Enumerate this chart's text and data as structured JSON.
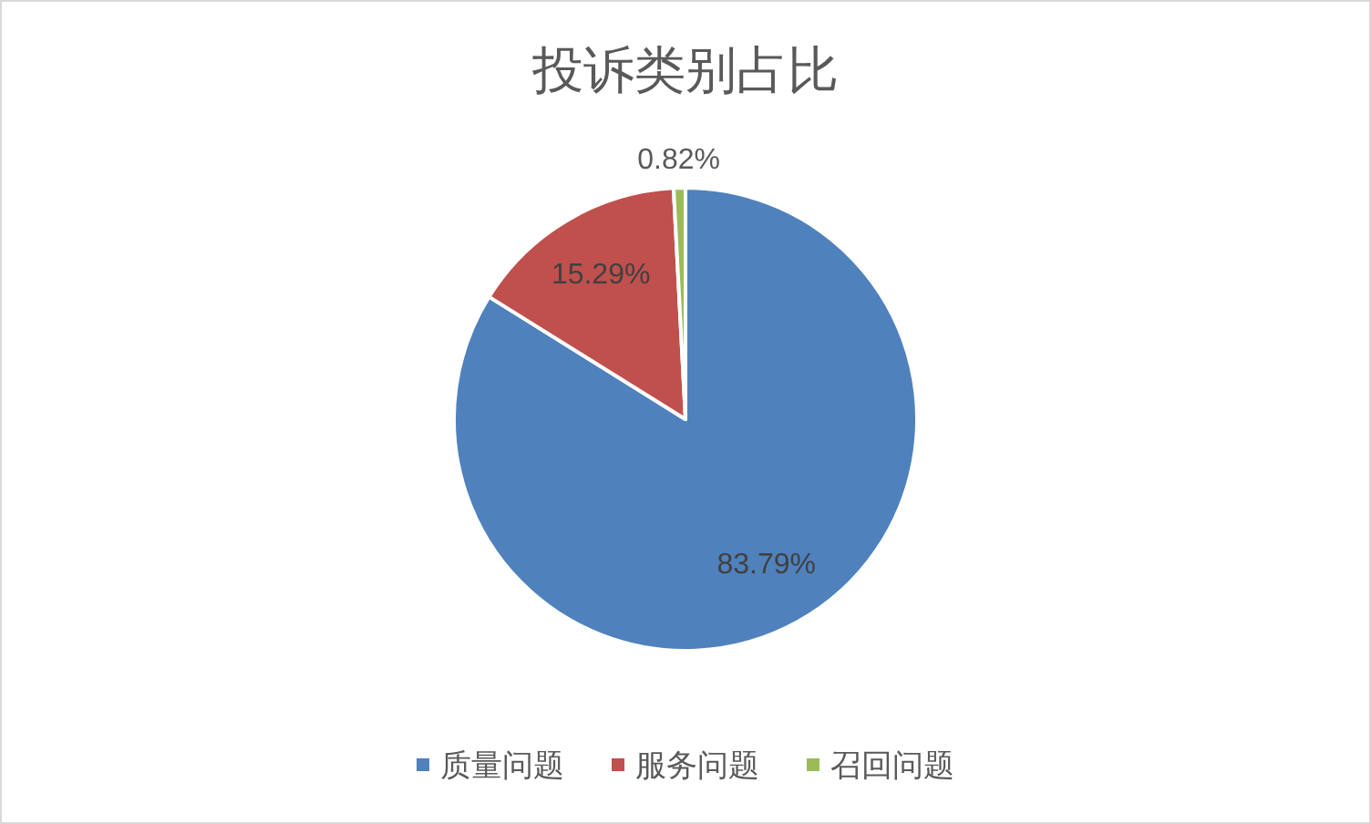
{
  "chart_data": {
    "type": "pie",
    "title": "投诉类别占比",
    "categories": [
      "质量问题",
      "服务问题",
      "召回问题"
    ],
    "values": [
      83.79,
      15.29,
      0.82
    ],
    "colors": [
      "#4f81bd",
      "#c0504d",
      "#9bbb59"
    ],
    "value_labels": [
      "83.79%",
      "15.29%",
      "0.82%"
    ],
    "legend": "bottom"
  }
}
